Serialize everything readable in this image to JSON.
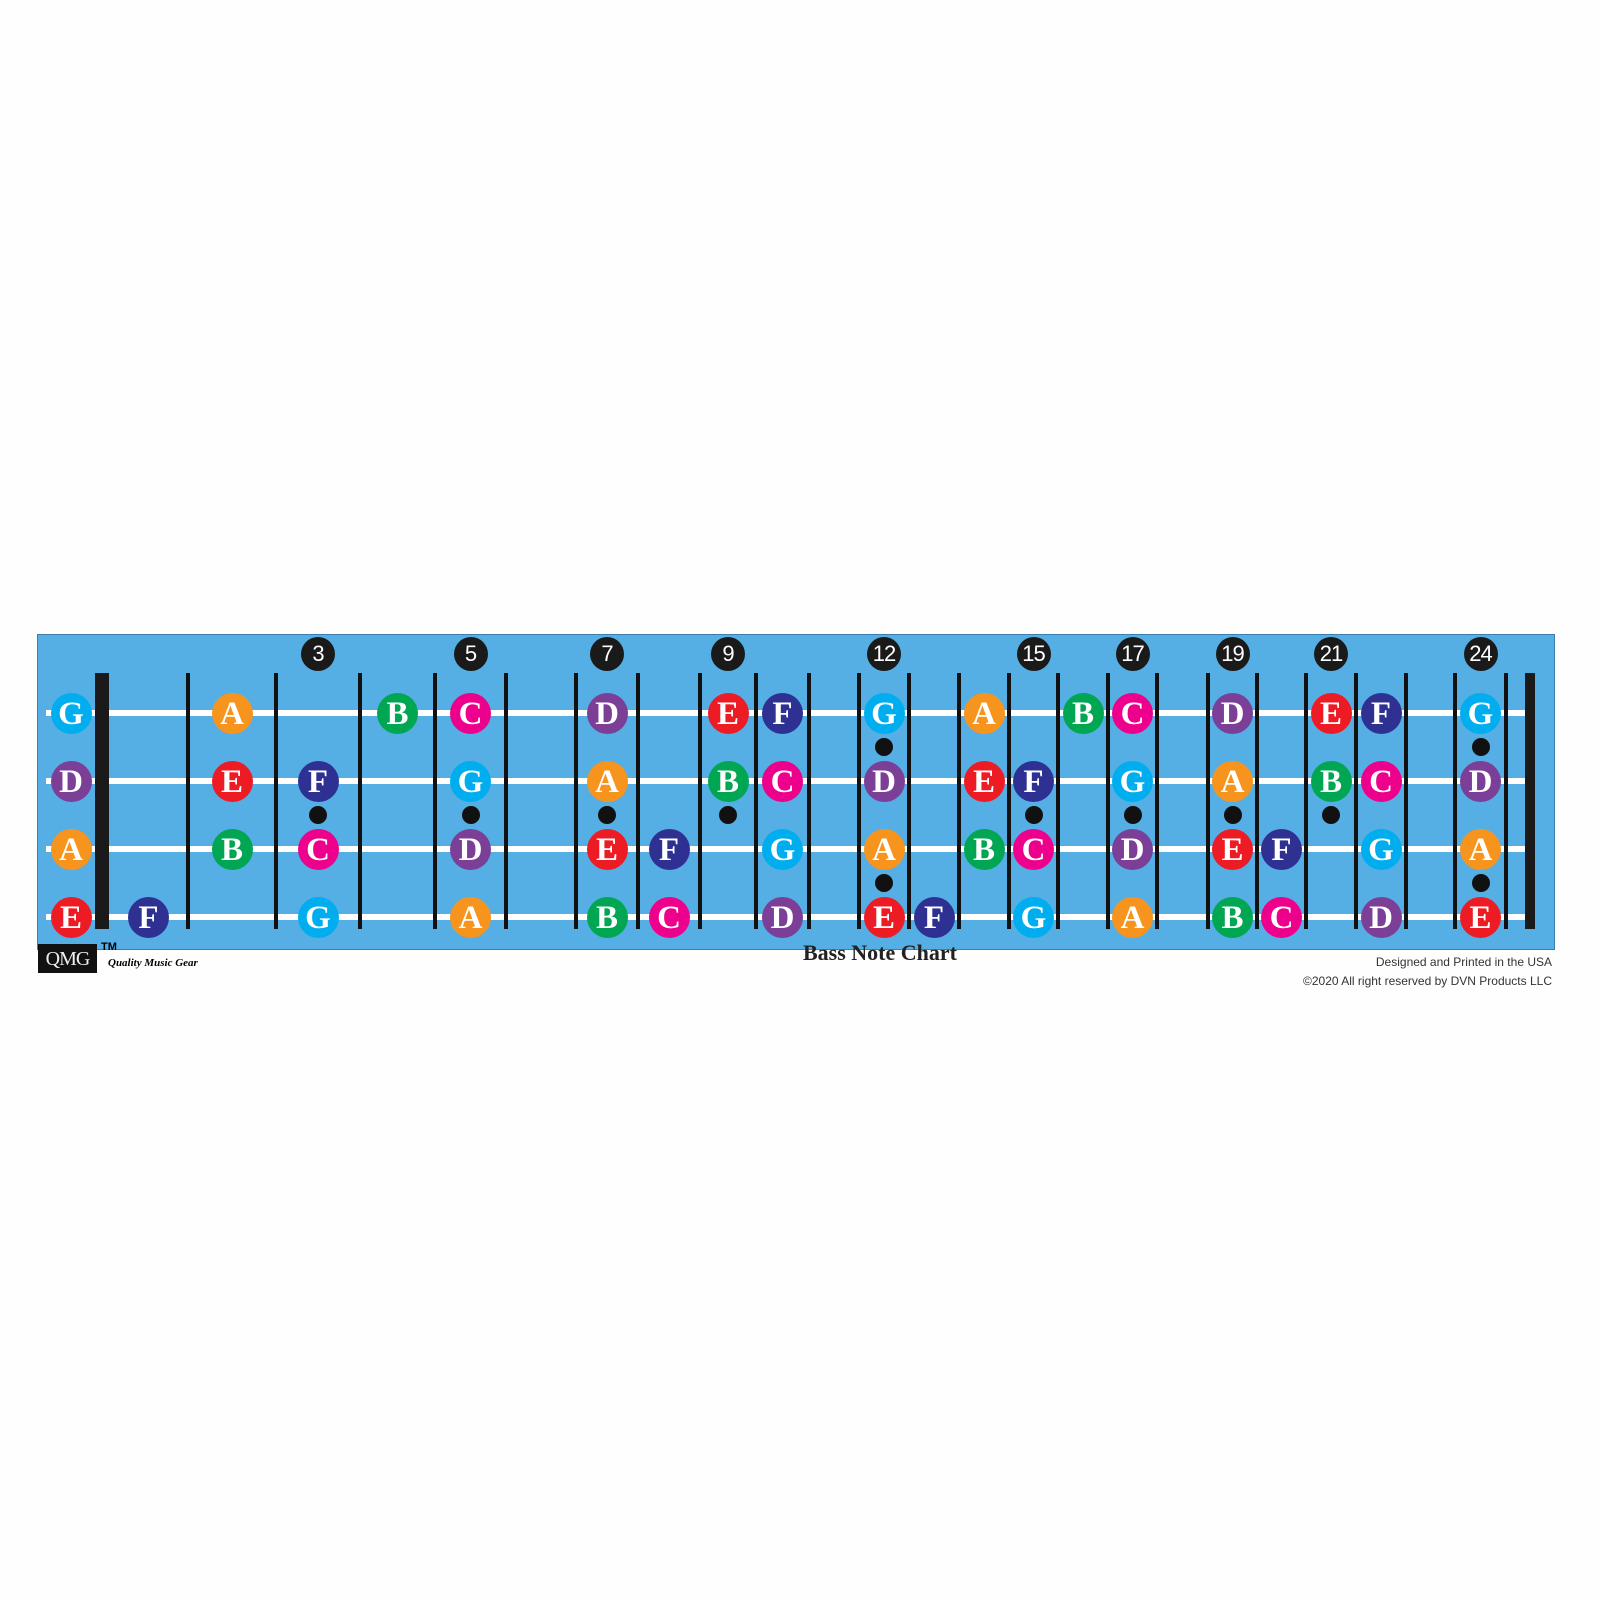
{
  "title": "Bass Note Chart",
  "logo": {
    "text": "QMG",
    "trademark": "TM",
    "tagline": "Quality Music Gear"
  },
  "credits": [
    "Designed and Printed in the USA",
    "©2020 All right reserved by DVN Products LLC"
  ],
  "colors": {
    "board": "#55aee4",
    "A": "#f7941d",
    "B": "#00a651",
    "C": "#ec008c",
    "D": "#7b3f98",
    "E": "#ed1c24",
    "F": "#2e3192",
    "G": "#00aeef"
  },
  "fret_markers": [
    3,
    5,
    7,
    9,
    12,
    15,
    17,
    19,
    21,
    24
  ],
  "inlay_dots": [
    {
      "fret": 3,
      "between": [
        "D",
        "A"
      ]
    },
    {
      "fret": 5,
      "between": [
        "D",
        "A"
      ]
    },
    {
      "fret": 7,
      "between": [
        "D",
        "A"
      ]
    },
    {
      "fret": 9,
      "between": [
        "D",
        "A"
      ]
    },
    {
      "fret": 12,
      "between": [
        "G",
        "D"
      ]
    },
    {
      "fret": 12,
      "between": [
        "A",
        "E"
      ]
    },
    {
      "fret": 15,
      "between": [
        "D",
        "A"
      ]
    },
    {
      "fret": 17,
      "between": [
        "D",
        "A"
      ]
    },
    {
      "fret": 19,
      "between": [
        "D",
        "A"
      ]
    },
    {
      "fret": 21,
      "between": [
        "D",
        "A"
      ]
    },
    {
      "fret": 24,
      "between": [
        "G",
        "D"
      ]
    },
    {
      "fret": 24,
      "between": [
        "A",
        "E"
      ]
    }
  ],
  "strings": [
    {
      "name": "G",
      "notes": [
        [
          "G",
          0
        ],
        [
          "A",
          2
        ],
        [
          "B",
          4
        ],
        [
          "C",
          5
        ],
        [
          "D",
          7
        ],
        [
          "E",
          9
        ],
        [
          "F",
          10
        ],
        [
          "G",
          12
        ],
        [
          "A",
          14
        ],
        [
          "B",
          16
        ],
        [
          "C",
          17
        ],
        [
          "D",
          19
        ],
        [
          "E",
          21
        ],
        [
          "F",
          22
        ],
        [
          "G",
          24
        ]
      ]
    },
    {
      "name": "D",
      "notes": [
        [
          "D",
          0
        ],
        [
          "E",
          2
        ],
        [
          "F",
          3
        ],
        [
          "G",
          5
        ],
        [
          "A",
          7
        ],
        [
          "B",
          9
        ],
        [
          "C",
          10
        ],
        [
          "D",
          12
        ],
        [
          "E",
          14
        ],
        [
          "F",
          15
        ],
        [
          "G",
          17
        ],
        [
          "A",
          19
        ],
        [
          "B",
          21
        ],
        [
          "C",
          22
        ],
        [
          "D",
          24
        ]
      ]
    },
    {
      "name": "A",
      "notes": [
        [
          "A",
          0
        ],
        [
          "B",
          2
        ],
        [
          "C",
          3
        ],
        [
          "D",
          5
        ],
        [
          "E",
          7
        ],
        [
          "F",
          8
        ],
        [
          "G",
          10
        ],
        [
          "A",
          12
        ],
        [
          "B",
          14
        ],
        [
          "C",
          15
        ],
        [
          "D",
          17
        ],
        [
          "E",
          19
        ],
        [
          "F",
          20
        ],
        [
          "G",
          22
        ],
        [
          "A",
          24
        ]
      ]
    },
    {
      "name": "E",
      "notes": [
        [
          "E",
          0
        ],
        [
          "F",
          1
        ],
        [
          "G",
          3
        ],
        [
          "A",
          5
        ],
        [
          "B",
          7
        ],
        [
          "C",
          8
        ],
        [
          "D",
          10
        ],
        [
          "E",
          12
        ],
        [
          "F",
          13
        ],
        [
          "G",
          15
        ],
        [
          "A",
          17
        ],
        [
          "B",
          19
        ],
        [
          "C",
          20
        ],
        [
          "D",
          22
        ],
        [
          "E",
          24
        ]
      ]
    }
  ]
}
